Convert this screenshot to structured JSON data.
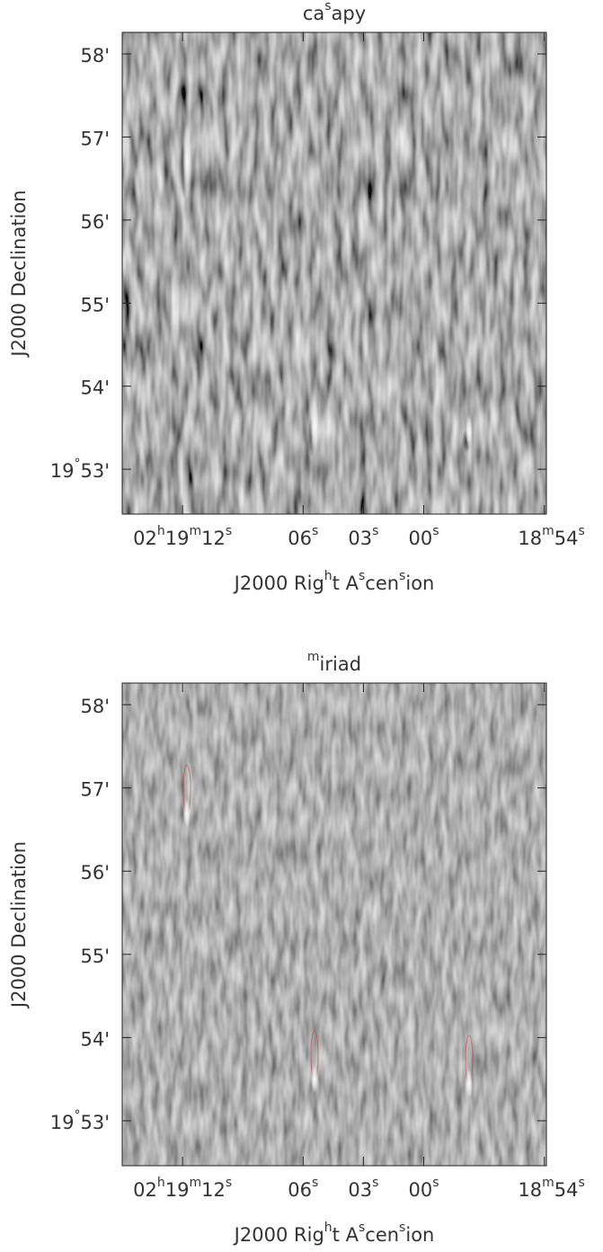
{
  "chart_data": [
    {
      "type": "image",
      "title": "casapy",
      "xlabel": "J2000 Right Ascension",
      "ylabel": "J2000 Declination",
      "xlim": [
        15.0,
        -6.1
      ],
      "ylim": [
        52.46,
        58.26
      ],
      "xticks": [
        {
          "value": 12,
          "label": "02h19m12s"
        },
        {
          "value": 6,
          "label": "06s"
        },
        {
          "value": 3,
          "label": "03s"
        },
        {
          "value": 0,
          "label": "00s"
        },
        {
          "value": -6,
          "label": "18m54s"
        }
      ],
      "yticks": [
        {
          "value": 53,
          "label": "19°53'"
        },
        {
          "value": 54,
          "label": "54'"
        },
        {
          "value": 55,
          "label": "55'"
        },
        {
          "value": 56,
          "label": "56'"
        },
        {
          "value": 57,
          "label": "57'"
        },
        {
          "value": 58,
          "label": "58'"
        }
      ]
    },
    {
      "type": "image",
      "title": "miriad",
      "xlabel": "J2000 Right Ascension",
      "ylabel": "J2000 Declination",
      "xlim": [
        15.0,
        -6.1
      ],
      "ylim": [
        52.46,
        58.26
      ],
      "xticks": [
        {
          "value": 12,
          "label": "02h19m12s"
        },
        {
          "value": 6,
          "label": "06s"
        },
        {
          "value": 3,
          "label": "03s"
        },
        {
          "value": 0,
          "label": "00s"
        },
        {
          "value": -6,
          "label": "18m54s"
        }
      ],
      "yticks": [
        {
          "value": 53,
          "label": "19°53'"
        },
        {
          "value": 54,
          "label": "54'"
        },
        {
          "value": 55,
          "label": "55'"
        },
        {
          "value": 56,
          "label": "56'"
        },
        {
          "value": 57,
          "label": "57'"
        },
        {
          "value": 58,
          "label": "58'"
        }
      ]
    }
  ]
}
